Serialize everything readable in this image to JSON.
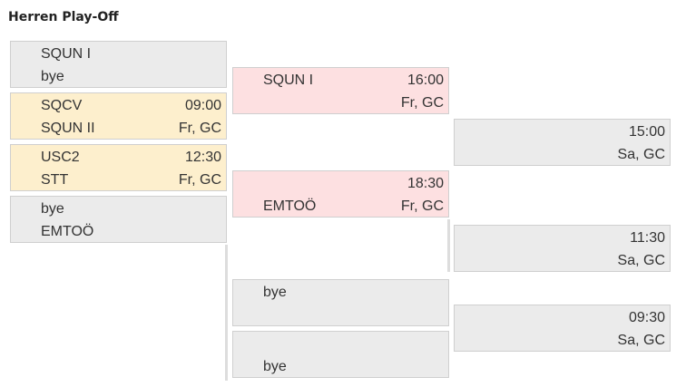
{
  "title": "Herren Play-Off",
  "colors": {
    "default": "#ebebeb",
    "scheduled": "#fdefcd",
    "highlight": "#fde0e1",
    "border": "#cfcfcf"
  },
  "rounds": [
    {
      "matches": [
        {
          "style": "default",
          "team1": "SQUN I",
          "team2": "bye",
          "time": "",
          "place": ""
        },
        {
          "style": "scheduled",
          "team1": "SQCV",
          "team2": "SQUN II",
          "time": "09:00",
          "place": "Fr, GC"
        },
        {
          "style": "scheduled",
          "team1": "USC2",
          "team2": "STT",
          "time": "12:30",
          "place": "Fr, GC"
        },
        {
          "style": "default",
          "team1": "bye",
          "team2": "EMTOÖ",
          "time": "",
          "place": ""
        }
      ]
    },
    {
      "matches": [
        {
          "style": "highlight",
          "team1": "SQUN I",
          "team2": "",
          "time": "16:00",
          "place": "Fr, GC"
        },
        {
          "style": "highlight",
          "team1": "",
          "team2": "EMTOÖ",
          "time": "18:30",
          "place": "Fr, GC"
        },
        {
          "style": "default",
          "team1": "bye",
          "team2": "",
          "time": "",
          "place": ""
        },
        {
          "style": "default",
          "team1": "",
          "team2": "bye",
          "time": "",
          "place": ""
        }
      ]
    },
    {
      "matches": [
        {
          "style": "default",
          "team1": "",
          "team2": "",
          "time": "15:00",
          "place": "Sa, GC"
        },
        {
          "style": "default",
          "team1": "",
          "team2": "",
          "time": "11:30",
          "place": "Sa, GC"
        },
        {
          "style": "default",
          "team1": "",
          "team2": "",
          "time": "09:30",
          "place": "Sa, GC"
        }
      ]
    }
  ]
}
